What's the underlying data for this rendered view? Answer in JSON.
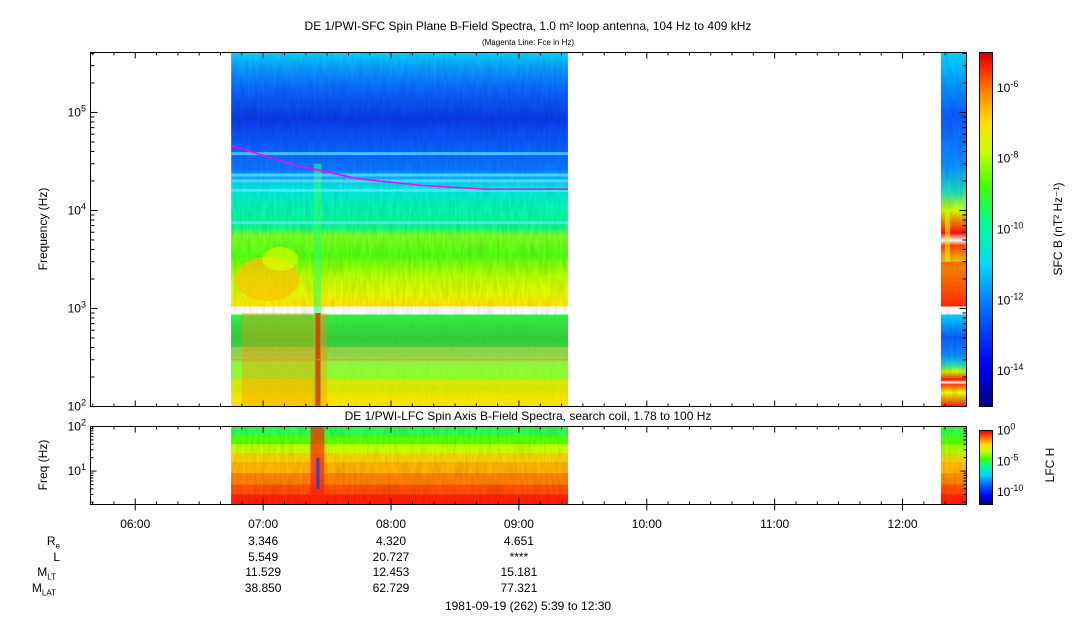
{
  "title": "DE 1/PWI-SFC  Spin Plane B-Field Spectra, 1.0 m² loop antenna, 104 Hz to 409 kHz",
  "subtitle": "(Magenta Line: Fce in Hz)",
  "panel2_title": "DE 1/PWI-LFC  Spin Axis B-Field Spectra, search coil, 1.78 to 100 Hz",
  "date_line": "1981-09-19 (262) 5:39 to 12:30",
  "colors": {
    "fce_line": "#ff00ff",
    "colormap": [
      "#000080",
      "#0000ff",
      "#0070ff",
      "#00d8ff",
      "#00ff90",
      "#40ff00",
      "#c8ff00",
      "#ffe000",
      "#ff9000",
      "#ff2000",
      "#d00000"
    ]
  },
  "ephemeris": {
    "rows": [
      {
        "label": "R",
        "sub": "e",
        "values": [
          "3.346",
          "4.320",
          "4.651"
        ]
      },
      {
        "label": "L",
        "sub": "",
        "values": [
          "5.549",
          "20.727",
          "****"
        ]
      },
      {
        "label": "M",
        "sub": "LT",
        "values": [
          "11.529",
          "12.453",
          "15.181"
        ]
      },
      {
        "label": "M",
        "sub": "LAT",
        "values": [
          "38.850",
          "62.729",
          "77.321"
        ]
      }
    ]
  },
  "chart_data": [
    {
      "type": "heatmap",
      "title": "DE 1/PWI-SFC  Spin Plane B-Field Spectra, 1.0 m² loop antenna, 104 Hz to 409 kHz",
      "ylabel": "Frequency (Hz)",
      "yscale": "log",
      "ylim": [
        100,
        409000
      ],
      "y_ticks": [
        "10^2",
        "10^3",
        "10^4",
        "10^5"
      ],
      "xlim": [
        "05:39",
        "12:30"
      ],
      "x_ticks": [
        "06:00",
        "07:00",
        "08:00",
        "09:00",
        "10:00",
        "11:00",
        "12:00"
      ],
      "data_intervals": [
        [
          "06:45",
          "09:23"
        ],
        [
          "12:18",
          "12:30"
        ]
      ],
      "colorbar": {
        "label": "SFC B (nT² Hz⁻¹)",
        "scale": "log",
        "range": [
          1e-15,
          1e-05
        ],
        "ticks": [
          "10^-6",
          "10^-8",
          "10^-10",
          "10^-12",
          "10^-14"
        ]
      },
      "fce_line": {
        "name": "Fce",
        "times": [
          "06:45",
          "07:15",
          "07:45",
          "08:15",
          "08:45",
          "09:23"
        ],
        "values": [
          46000,
          29000,
          21000,
          18000,
          16500,
          16500
        ]
      }
    },
    {
      "type": "heatmap",
      "title": "DE 1/PWI-LFC  Spin Axis B-Field Spectra, search coil, 1.78 to 100 Hz",
      "ylabel": "Freq (Hz)",
      "yscale": "log",
      "ylim": [
        1.78,
        100
      ],
      "y_ticks": [
        "10^1",
        "10^2"
      ],
      "xlim": [
        "05:39",
        "12:30"
      ],
      "data_intervals": [
        [
          "06:45",
          "09:23"
        ],
        [
          "12:18",
          "12:30"
        ]
      ],
      "colorbar": {
        "label": "LFC H",
        "scale": "log",
        "range": [
          1e-12,
          1
        ],
        "ticks": [
          "10^0",
          "10^-5",
          "10^-10"
        ]
      }
    }
  ]
}
